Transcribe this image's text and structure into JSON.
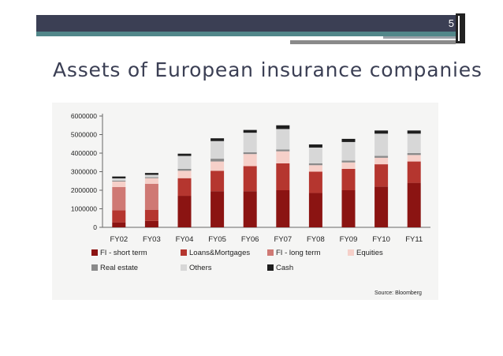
{
  "slide": {
    "page_number": "5",
    "title": "Assets of European insurance companies",
    "source": "Source: Bloomberg"
  },
  "colors": {
    "header_dark": "#3b3f54",
    "header_teal": "#52878a",
    "title_text": "#3b3f54"
  },
  "chart_data": {
    "type": "bar",
    "stacked": true,
    "title": "",
    "xlabel": "",
    "ylabel": "",
    "ylim": [
      0,
      6000000
    ],
    "yticks": [
      0,
      1000000,
      2000000,
      3000000,
      4000000,
      5000000,
      6000000
    ],
    "ytick_labels": [
      "0",
      "1000000",
      "2000000",
      "3000000",
      "4000000",
      "5000000",
      "6000000"
    ],
    "grid": false,
    "legend_position": "bottom",
    "categories": [
      "FY02",
      "FY03",
      "FY04",
      "FY05",
      "FY06",
      "FY07",
      "FY08",
      "FY09",
      "FY10",
      "FY11"
    ],
    "series": [
      {
        "name": "FI - short term",
        "color": "#8b1412",
        "values": [
          270000,
          350000,
          1700000,
          1950000,
          1950000,
          2000000,
          1850000,
          2000000,
          2200000,
          2400000
        ]
      },
      {
        "name": "Loans&Mortgages",
        "color": "#b5362f",
        "values": [
          650000,
          600000,
          950000,
          1100000,
          1350000,
          1450000,
          1150000,
          1150000,
          1200000,
          1150000
        ]
      },
      {
        "name": "FI - long term",
        "color": "#cf7974",
        "values": [
          1250000,
          1400000,
          0,
          0,
          0,
          0,
          0,
          0,
          0,
          0
        ]
      },
      {
        "name": "Equities",
        "color": "#f6d0c9",
        "values": [
          300000,
          300000,
          400000,
          500000,
          650000,
          650000,
          350000,
          350000,
          350000,
          350000
        ]
      },
      {
        "name": "Real estate",
        "color": "#8a8a8a",
        "values": [
          50000,
          50000,
          100000,
          150000,
          100000,
          100000,
          100000,
          100000,
          100000,
          100000
        ]
      },
      {
        "name": "Others",
        "color": "#d7d7d7",
        "values": [
          120000,
          130000,
          700000,
          950000,
          1050000,
          1100000,
          850000,
          1000000,
          1200000,
          1050000
        ]
      },
      {
        "name": "Cash",
        "color": "#1e1e1e",
        "values": [
          100000,
          100000,
          120000,
          150000,
          150000,
          200000,
          170000,
          170000,
          170000,
          170000
        ]
      }
    ]
  }
}
